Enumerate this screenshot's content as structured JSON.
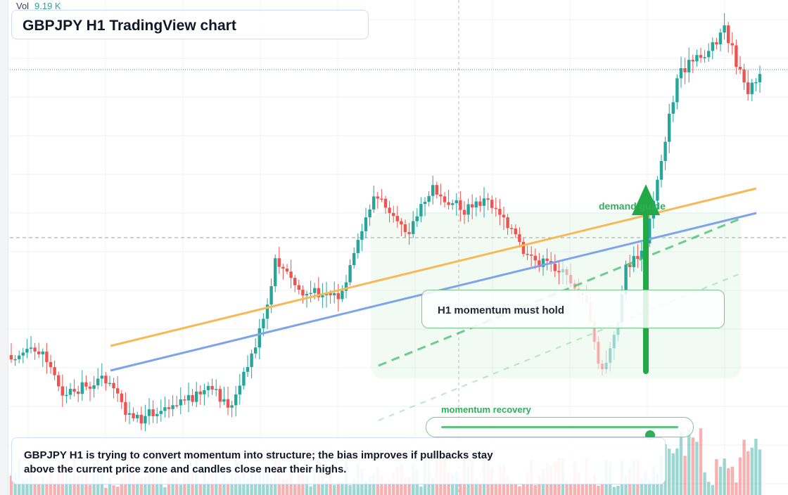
{
  "header": {
    "vol_label": "Vol",
    "vol_value": "9.19 K"
  },
  "title": "GBPJPY H1 TradingView chart",
  "annotations": {
    "demand_label": "demand guide",
    "callout": "H1 momentum must hold",
    "momentum_label": "momentum recovery",
    "momentum_level": 0.88
  },
  "note": "GBPJPY H1 is trying to convert momentum into structure; the bias improves if pullbacks stay above the current price zone and candles close near their highs.",
  "colors": {
    "up": "#26a69a",
    "down": "#ef5350",
    "guide_orange": "#f7b955",
    "guide_blue": "#7fa3ea",
    "guide_green": "#3fbf6a",
    "arrow_green": "#22a845"
  }
}
